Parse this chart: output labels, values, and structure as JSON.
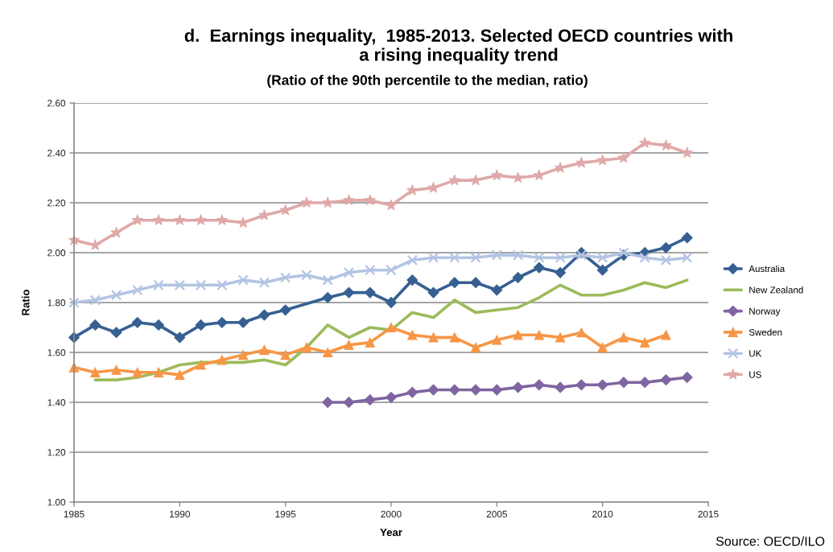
{
  "chart_data": {
    "type": "line",
    "title": "d.  Earnings inequality,  1985-2013. Selected OECD countries with\na rising inequality trend",
    "subtitle": "(Ratio of the 90th percentile to the median, ratio)",
    "xlabel": "Year",
    "ylabel": "Ratio",
    "xlim": [
      1985,
      2015
    ],
    "xticks": [
      1985,
      1990,
      1995,
      2000,
      2005,
      2010,
      2015
    ],
    "ylim": [
      1.0,
      2.6
    ],
    "yticks": [
      {
        "value": 1.0,
        "label": "1.00"
      },
      {
        "value": 1.2,
        "label": "1.20"
      },
      {
        "value": 1.4,
        "label": "1.40"
      },
      {
        "value": 1.6,
        "label": "1.60"
      },
      {
        "value": 1.8,
        "label": "1.80"
      },
      {
        "value": 2.0,
        "label": "2.00"
      },
      {
        "value": 2.2,
        "label": "2.20"
      },
      {
        "value": 2.4,
        "label": "2.40"
      },
      {
        "value": 2.6,
        "label": "2.60"
      }
    ],
    "grid": "y",
    "legend": "right",
    "annotations": [
      "Source: OECD/ILO"
    ],
    "series": [
      {
        "name": "Australia",
        "color": "#376092",
        "marker": "diamond",
        "x": [
          1985,
          1986,
          1987,
          1988,
          1989,
          1990,
          1991,
          1992,
          1993,
          1994,
          1995,
          1997,
          1998,
          1999,
          2000,
          2001,
          2002,
          2003,
          2004,
          2005,
          2006,
          2007,
          2008,
          2009,
          2010,
          2011,
          2012,
          2013,
          2014
        ],
        "values": [
          1.66,
          1.71,
          1.68,
          1.72,
          1.71,
          1.66,
          1.71,
          1.72,
          1.72,
          1.75,
          1.77,
          1.82,
          1.84,
          1.84,
          1.8,
          1.89,
          1.84,
          1.88,
          1.88,
          1.85,
          1.9,
          1.94,
          1.92,
          2.0,
          1.93,
          1.99,
          2.0,
          2.02,
          2.06
        ]
      },
      {
        "name": "New Zealand",
        "color": "#9bbb59",
        "marker": "none",
        "x": [
          1986,
          1987,
          1988,
          1989,
          1990,
          1991,
          1992,
          1993,
          1994,
          1995,
          1996,
          1997,
          1998,
          1999,
          2000,
          2001,
          2002,
          2003,
          2004,
          2005,
          2006,
          2007,
          2008,
          2009,
          2010,
          2011,
          2012,
          2013,
          2014
        ],
        "values": [
          1.49,
          1.49,
          1.5,
          1.52,
          1.55,
          1.56,
          1.56,
          1.56,
          1.57,
          1.55,
          1.62,
          1.71,
          1.66,
          1.7,
          1.69,
          1.76,
          1.74,
          1.81,
          1.76,
          1.77,
          1.78,
          1.82,
          1.87,
          1.83,
          1.83,
          1.85,
          1.88,
          1.86,
          1.89
        ]
      },
      {
        "name": "Norway",
        "color": "#8064a2",
        "marker": "diamond",
        "x": [
          1997,
          1998,
          1999,
          2000,
          2001,
          2002,
          2003,
          2004,
          2005,
          2006,
          2007,
          2008,
          2009,
          2010,
          2011,
          2012,
          2013,
          2014
        ],
        "values": [
          1.4,
          1.4,
          1.41,
          1.42,
          1.44,
          1.45,
          1.45,
          1.45,
          1.45,
          1.46,
          1.47,
          1.46,
          1.47,
          1.47,
          1.48,
          1.48,
          1.49,
          1.5
        ]
      },
      {
        "name": "Sweden",
        "color": "#f79646",
        "marker": "triangle",
        "x": [
          1985,
          1986,
          1987,
          1988,
          1989,
          1990,
          1991,
          1992,
          1993,
          1994,
          1995,
          1996,
          1997,
          1998,
          1999,
          2000,
          2001,
          2002,
          2003,
          2004,
          2005,
          2006,
          2007,
          2008,
          2009,
          2010,
          2011,
          2012,
          2013
        ],
        "values": [
          1.54,
          1.52,
          1.53,
          1.52,
          1.52,
          1.51,
          1.55,
          1.57,
          1.59,
          1.61,
          1.59,
          1.62,
          1.6,
          1.63,
          1.64,
          1.7,
          1.67,
          1.66,
          1.66,
          1.62,
          1.65,
          1.67,
          1.67,
          1.66,
          1.68,
          1.62,
          1.66,
          1.64,
          1.67
        ]
      },
      {
        "name": "UK",
        "color": "#b3c4e3",
        "marker": "cross",
        "x": [
          1985,
          1986,
          1987,
          1988,
          1989,
          1990,
          1991,
          1992,
          1993,
          1994,
          1995,
          1996,
          1997,
          1998,
          1999,
          2000,
          2001,
          2002,
          2003,
          2004,
          2005,
          2006,
          2007,
          2008,
          2009,
          2010,
          2011,
          2012,
          2013,
          2014
        ],
        "values": [
          1.8,
          1.81,
          1.83,
          1.85,
          1.87,
          1.87,
          1.87,
          1.87,
          1.89,
          1.88,
          1.9,
          1.91,
          1.89,
          1.92,
          1.93,
          1.93,
          1.97,
          1.98,
          1.98,
          1.98,
          1.99,
          1.99,
          1.98,
          1.98,
          1.99,
          1.98,
          2.0,
          1.98,
          1.97,
          1.98
        ]
      },
      {
        "name": "US",
        "color": "#e0a8a8",
        "marker": "star",
        "x": [
          1985,
          1986,
          1987,
          1988,
          1989,
          1990,
          1991,
          1992,
          1993,
          1994,
          1995,
          1996,
          1997,
          1998,
          1999,
          2000,
          2001,
          2002,
          2003,
          2004,
          2005,
          2006,
          2007,
          2008,
          2009,
          2010,
          2011,
          2012,
          2013,
          2014
        ],
        "values": [
          2.05,
          2.03,
          2.08,
          2.13,
          2.13,
          2.13,
          2.13,
          2.13,
          2.12,
          2.15,
          2.17,
          2.2,
          2.2,
          2.21,
          2.21,
          2.19,
          2.25,
          2.26,
          2.29,
          2.29,
          2.31,
          2.3,
          2.31,
          2.34,
          2.36,
          2.37,
          2.38,
          2.44,
          2.43,
          2.4
        ]
      }
    ]
  }
}
